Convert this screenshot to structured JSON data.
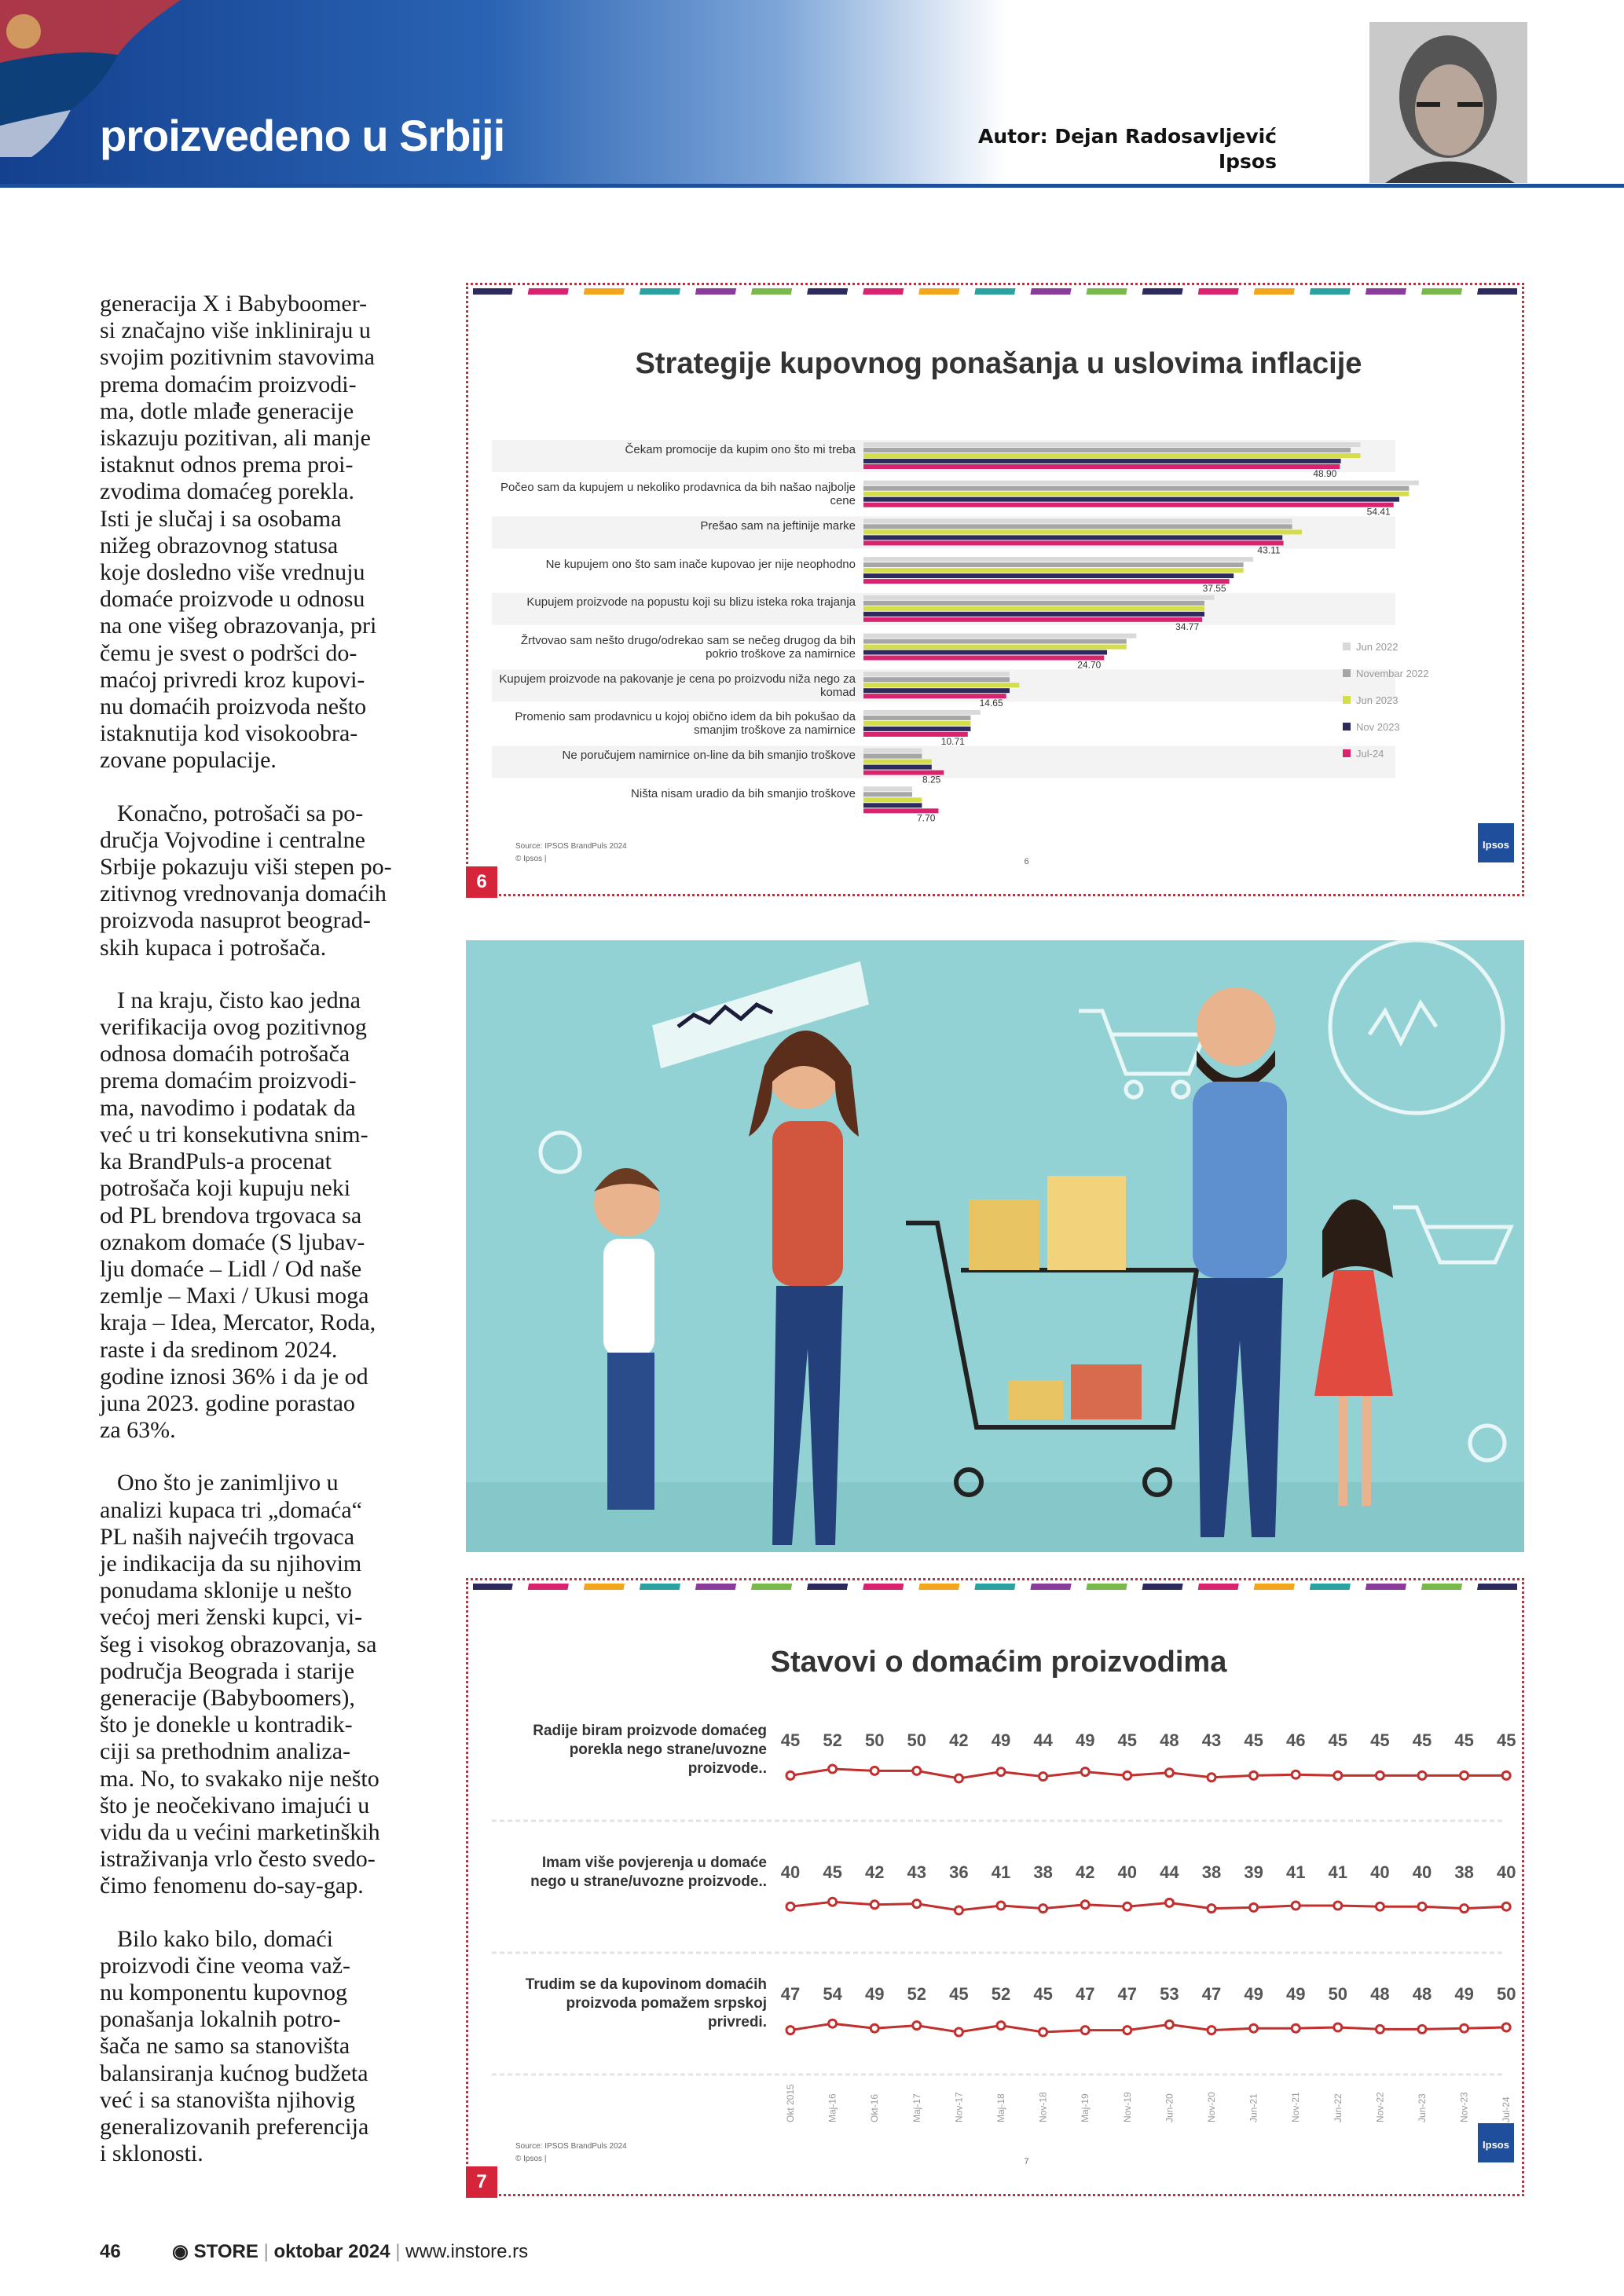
{
  "header": {
    "section_title": "proizvedeno u Srbiji",
    "author": "Autor: Dejan Radosavljević",
    "organization": "Ipsos"
  },
  "article": {
    "paragraphs": [
      [
        "generacija X i Babyboomer-",
        "si značajno više inkliniraju u",
        "svojim pozitivnim stavovima",
        "prema domaćim proizvodi-",
        "ma, dotle mlađe generacije",
        "iskazuju pozitivan, ali manje",
        "istaknut odnos prema proi-",
        "zvodima domaćeg porekla.",
        "Isti je slučaj i sa osobama",
        "nižeg obrazovnog statusa",
        "koje dosledno više vrednuju",
        "domaće proizvode u odnosu",
        "na one višeg obrazovanja, pri",
        "čemu je svest o podršci do-",
        "maćoj privredi kroz kupovi-",
        "nu domaćih proizvoda nešto",
        "istaknutija kod visokoobra-",
        "zovane populacije."
      ],
      [
        "Konačno, potrošači sa po-",
        "dručja Vojvodine i centralne",
        "Srbije pokazuju viši stepen po-",
        "zitivnog vrednovanja domaćih",
        "proizvoda nasuprot beograd-",
        "skih kupaca i potrošača."
      ],
      [
        "I na kraju, čisto kao jedna",
        "verifikacija ovog pozitivnog",
        "odnosa domaćih potrošača",
        "prema domaćim proizvodi-",
        "ma, navodimo i podatak da",
        "već u tri konsekutivna snim-",
        "ka BrandPuls-a procenat",
        "potrošača koji kupuju neki",
        "od PL brendova trgovaca sa",
        "oznakom domaće (S ljubav-",
        "lju domaće – Lidl / Od naše",
        "zemlje – Maxi / Ukusi moga",
        "kraja – Idea, Mercator, Roda,",
        "raste i da sredinom 2024.",
        "godine iznosi 36% i da je od",
        "juna 2023. godine porastao",
        "za 63%."
      ],
      [
        "Ono što je zanimljivo u",
        "analizi kupaca tri „domaća“",
        "PL naših najvećih trgovaca",
        "je indikacija da su njihovim",
        "ponudama sklonije u nešto",
        "većoj meri ženski kupci, vi-",
        "šeg i visokog obrazovanja, sa",
        "područja Beograda i starije",
        "generacije (Babyboomers),",
        "što je donekle u kontradik-",
        "ciji sa prethodnim analiza-",
        "ma. No, to svakako nije nešto",
        "što je neočekivano imajući u",
        "vidu da u većini marketinških",
        "istraživanja vrlo često svedo-",
        "čimo fenomenu do-say-gap."
      ],
      [
        "Bilo kako bilo, domaći",
        "proizvodi čine veoma važ-",
        "nu komponentu kupovnog",
        "ponašanja lokalnih potro-",
        "šača ne samo sa stanovišta",
        "balansiranja kućnog budžeta",
        "već i sa stanovišta njihovig",
        "generalizovanih preferencija",
        "i sklonosti."
      ]
    ]
  },
  "figures": [
    {
      "number": "6",
      "chart_data": {
        "type": "bar",
        "title": "Strategije kupovnog ponašanja u uslovima inflacije",
        "categories": [
          "Čekam promocije da kupim ono što mi treba",
          "Počeo sam da kupujem u nekoliko prodavnica da bih našao najbolje cene",
          "Prešao sam na jeftinije marke",
          "Ne kupujem ono što sam inače kupovao jer nije neophodno",
          "Kupujem proizvode na popustu koji su blizu isteka roka trajanja",
          "Žrtvovao sam nešto drugo/odrekao sam se nečeg drugog da bih pokrio troškove za namirnice",
          "Kupujem proizvode na pakovanje je cena po proizvodu niža nego za komad",
          "Promenio sam prodavnicu u kojoj obično idem da bih pokušao da smanjim troškove za namirnice",
          "Ne poručujem namirnice on-line da bih smanjio troškove",
          "Ništa nisam uradio da bih smanjio troškove"
        ],
        "series": [
          {
            "name": "Jun 2022",
            "color": "#d9d9d9",
            "values": [
              51,
              57,
              44,
              40,
              36,
              28,
              15,
              12,
              6,
              5
            ]
          },
          {
            "name": "Novembar 2022",
            "color": "#a6a6a6",
            "values": [
              50,
              56,
              44,
              39,
              35,
              27,
              15,
              11,
              6,
              5
            ]
          },
          {
            "name": "Jun 2023",
            "color": "#d4de4a",
            "values": [
              51,
              56,
              45,
              39,
              35,
              27,
              16,
              11,
              7,
              6
            ]
          },
          {
            "name": "Nov 2023",
            "color": "#2d2a5e",
            "values": [
              49,
              55,
              43,
              38,
              35,
              25,
              15,
              11,
              7,
              6
            ]
          },
          {
            "name": "Jul-24",
            "color": "#d8236e",
            "values": [
              48.9,
              54.41,
              43.11,
              37.55,
              34.77,
              24.7,
              14.65,
              10.71,
              8.25,
              7.7
            ],
            "value_labels": [
              "48.90",
              "54.41",
              "43.11",
              "37.55",
              "34.77",
              "24.70",
              "14.65",
              "10.71",
              "8.25",
              "7.70"
            ]
          }
        ],
        "source": "Source: IPSOS BrandPuls 2024",
        "copyright": "© Ipsos |",
        "slide_number": "6",
        "logo": "Ipsos"
      }
    },
    {
      "number": "7",
      "chart_data": {
        "type": "line",
        "title": "Stavovi o domaćim proizvodima",
        "x": [
          "Okt 2015",
          "Maj-16",
          "Okt-16",
          "Maj-17",
          "Nov-17",
          "Maj-18",
          "Nov-18",
          "Maj-19",
          "Nov-19",
          "Jun-20",
          "Nov-20",
          "Jun-21",
          "Nov-21",
          "Jun-22",
          "Nov-22",
          "Jun-23",
          "Nov-23",
          "Jul-24"
        ],
        "series": [
          {
            "name": "Radije biram proizvode domaćeg porekla nego strane/uvozne proizvode..",
            "color": "#c0302e",
            "values": [
              45,
              52,
              50,
              50,
              42,
              49,
              44,
              49,
              45,
              48,
              43,
              45,
              46,
              45,
              45,
              45,
              45,
              45
            ]
          },
          {
            "name": "Imam više povjerenja u domaće nego u strane/uvozne proizvode..",
            "color": "#c0302e",
            "values": [
              40,
              45,
              42,
              43,
              36,
              41,
              38,
              42,
              40,
              44,
              38,
              39,
              41,
              41,
              40,
              40,
              38,
              40
            ]
          },
          {
            "name": "Trudim se da kupovinom domaćih proizvoda pomažem srpskoj privredi.",
            "color": "#c0302e",
            "values": [
              47,
              54,
              49,
              52,
              45,
              52,
              45,
              47,
              47,
              53,
              47,
              49,
              49,
              50,
              48,
              48,
              49,
              50
            ]
          }
        ],
        "source": "Source: IPSOS BrandPuls 2024",
        "copyright": "© Ipsos |",
        "slide_number": "7",
        "logo": "Ipsos"
      }
    }
  ],
  "footer": {
    "page_number": "46",
    "magazine": "STORE",
    "issue": "oktobar 2024",
    "website": "www.instore.rs"
  }
}
